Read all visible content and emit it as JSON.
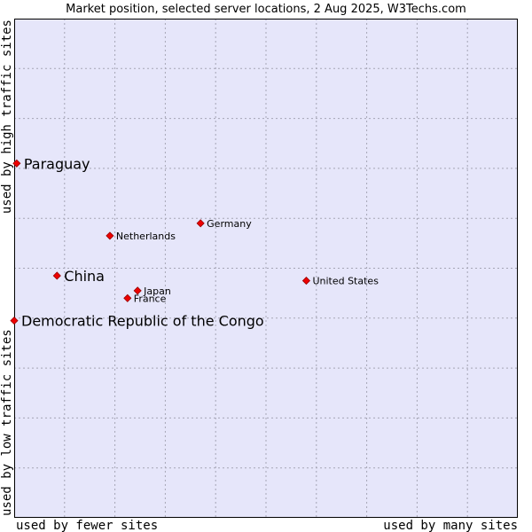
{
  "chart_data": {
    "type": "scatter",
    "title": "Market position, selected server locations, 2 Aug 2025, W3Techs.com",
    "x_axis": {
      "low_label": "used by fewer sites",
      "high_label": "used by many sites",
      "range": [
        0,
        100
      ]
    },
    "y_axis": {
      "low_label": "used by low traffic sites",
      "high_label": "used by high traffic sites",
      "range": [
        0,
        100
      ]
    },
    "grid": true,
    "points": [
      {
        "label": "Paraguay",
        "x": 0.5,
        "y": 71,
        "emphasis": true
      },
      {
        "label": "China",
        "x": 8.5,
        "y": 48.5,
        "emphasis": true
      },
      {
        "label": "Democratic Republic of the Congo",
        "x": 0,
        "y": 39.5,
        "emphasis": true
      },
      {
        "label": "Germany",
        "x": 37,
        "y": 59,
        "emphasis": false
      },
      {
        "label": "Netherlands",
        "x": 19,
        "y": 56.5,
        "emphasis": false
      },
      {
        "label": "Japan",
        "x": 24.5,
        "y": 45.5,
        "emphasis": false
      },
      {
        "label": "France",
        "x": 22.5,
        "y": 44,
        "emphasis": false
      },
      {
        "label": "United States",
        "x": 58,
        "y": 47.5,
        "emphasis": false
      }
    ],
    "colors": {
      "plot_background": "#e6e6fa",
      "grid": "#a5a5b5",
      "point": "#ee0000",
      "point_outline": "#990000"
    }
  }
}
